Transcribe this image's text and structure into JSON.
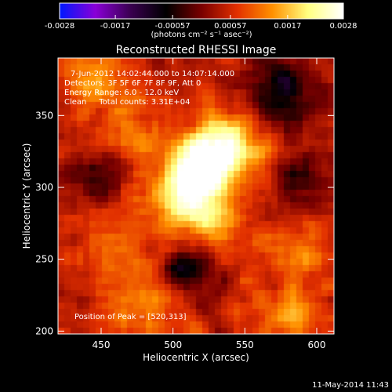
{
  "colorbar": {
    "tick_labels": [
      "-0.0028",
      "-0.0017",
      "-0.00057",
      "0.00057",
      "0.0017",
      "0.0028"
    ],
    "unit_label": "(photons cm⁻² s⁻¹ asec⁻²)",
    "range": [
      -0.0028,
      0.0028
    ],
    "colormap": [
      "#0018ff",
      "#8a00d8",
      "#3a0050",
      "#000000",
      "#7a0000",
      "#e23000",
      "#ff9000",
      "#ffff80",
      "#ffffff"
    ]
  },
  "chart_data": {
    "type": "heatmap",
    "title": "Reconstructed RHESSI Image",
    "xlabel": "Heliocentric X (arcsec)",
    "ylabel": "Heliocentric Y (arcsec)",
    "xlim": [
      420,
      612
    ],
    "ylim": [
      198,
      390
    ],
    "x_ticks": [
      450,
      500,
      550,
      600
    ],
    "y_ticks": [
      200,
      250,
      300,
      350
    ],
    "peak": {
      "x": 520,
      "y": 313
    },
    "annotations": [
      "7-Jun-2012 14:02:44.000 to 14:07:14.000",
      "Detectors: 3F 5F 6F 7F 8F 9F, Att 0",
      "Energy Range: 6.0 - 12.0 keV",
      "Clean     Total counts: 3.31E+04"
    ],
    "peak_label": "Position of Peak = [520,313]",
    "sources": [
      {
        "x": 520,
        "y": 313,
        "value": 0.0028,
        "width": 14
      },
      {
        "x": 540,
        "y": 330,
        "value": 0.0016,
        "width": 18
      },
      {
        "x": 505,
        "y": 290,
        "value": 0.0014,
        "width": 16
      },
      {
        "x": 530,
        "y": 275,
        "value": 0.001,
        "width": 14
      },
      {
        "x": 470,
        "y": 335,
        "value": 0.0008,
        "width": 18
      },
      {
        "x": 445,
        "y": 375,
        "value": 0.0009,
        "width": 16
      },
      {
        "x": 580,
        "y": 210,
        "value": 0.0009,
        "width": 18
      },
      {
        "x": 480,
        "y": 220,
        "value": 0.0008,
        "width": 20
      },
      {
        "x": 590,
        "y": 260,
        "value": 0.0007,
        "width": 16
      },
      {
        "x": 455,
        "y": 265,
        "value": 0.0007,
        "width": 16
      }
    ],
    "negative_regions": [
      {
        "x": 575,
        "y": 365,
        "value": -0.0014,
        "width": 18
      },
      {
        "x": 510,
        "y": 242,
        "value": -0.0011,
        "width": 14
      },
      {
        "x": 448,
        "y": 310,
        "value": -0.0009,
        "width": 14
      },
      {
        "x": 590,
        "y": 300,
        "value": -0.0008,
        "width": 14
      }
    ]
  },
  "footer": {
    "timestamp": "11-May-2014 11:43"
  }
}
